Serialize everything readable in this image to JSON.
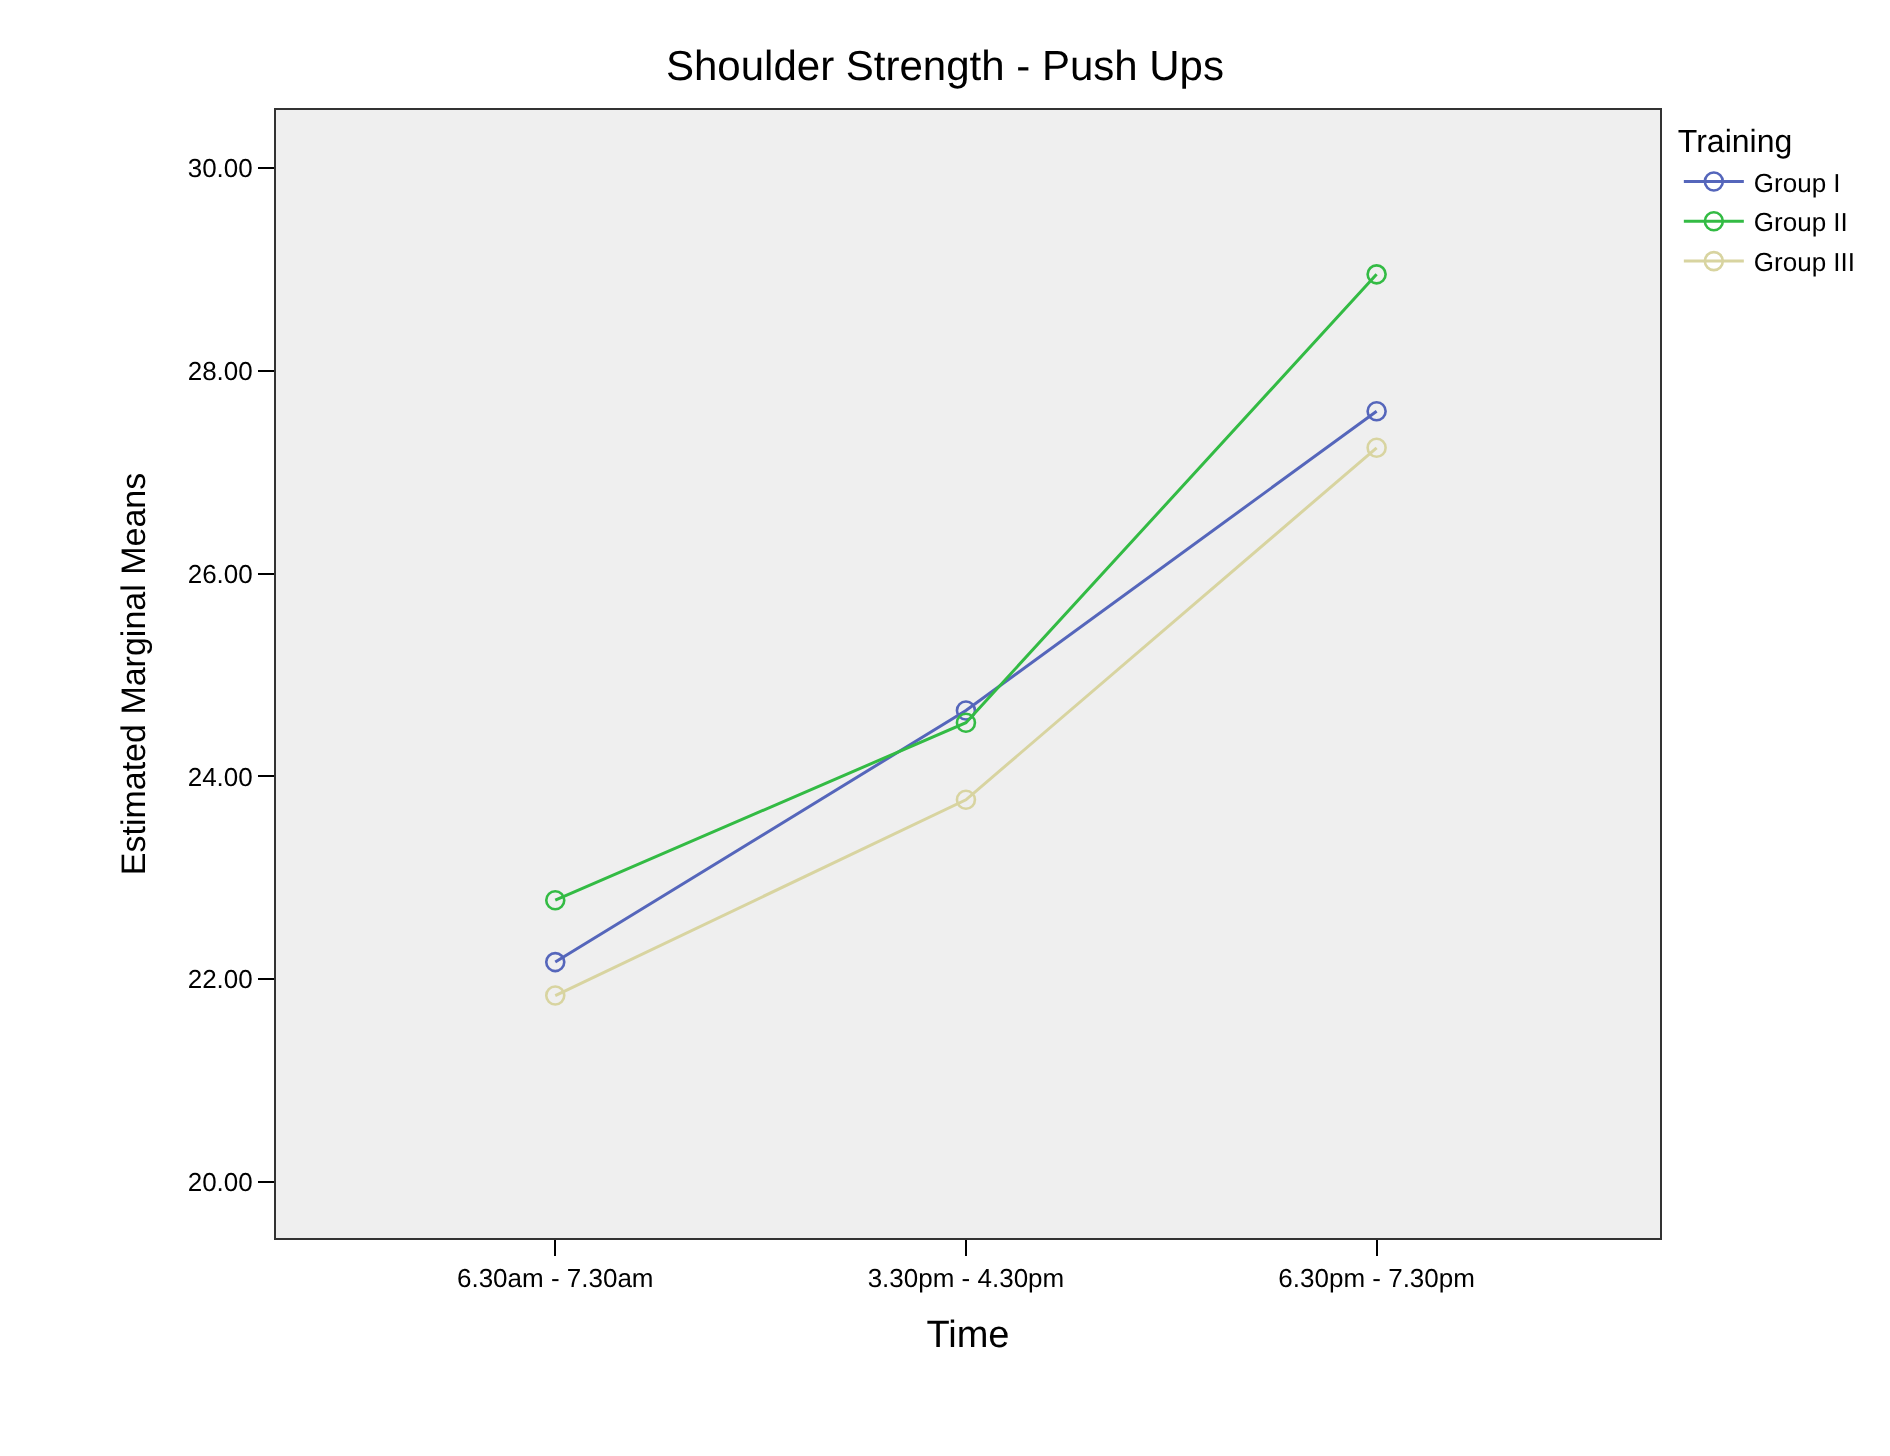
{
  "chart_data": {
    "type": "line",
    "title": "Shoulder Strength - Push Ups",
    "xlabel": "Time",
    "ylabel": "Estimated Marginal Means",
    "legend_title": "Training",
    "categories": [
      "6.30am - 7.30am",
      "3.30pm - 4.30pm",
      "6.30pm - 7.30pm"
    ],
    "series": [
      {
        "name": "Group I",
        "color": "#5566bb",
        "values": [
          22.17,
          24.65,
          27.6
        ]
      },
      {
        "name": "Group II",
        "color": "#33bb44",
        "values": [
          22.78,
          24.53,
          28.95
        ]
      },
      {
        "name": "Group III",
        "color": "#d8d4a0",
        "values": [
          21.84,
          23.77,
          27.24
        ]
      }
    ],
    "ylim": [
      19.45,
      30.57
    ],
    "yticks": [
      {
        "value": 20,
        "label": "20.00"
      },
      {
        "value": 22,
        "label": "22.00"
      },
      {
        "value": 24,
        "label": "24.00"
      },
      {
        "value": 26,
        "label": "26.00"
      },
      {
        "value": 28,
        "label": "28.00"
      },
      {
        "value": 30,
        "label": "30.00"
      }
    ],
    "grid": false,
    "legend": "top right",
    "marker": "circle",
    "line_style": "solid"
  }
}
